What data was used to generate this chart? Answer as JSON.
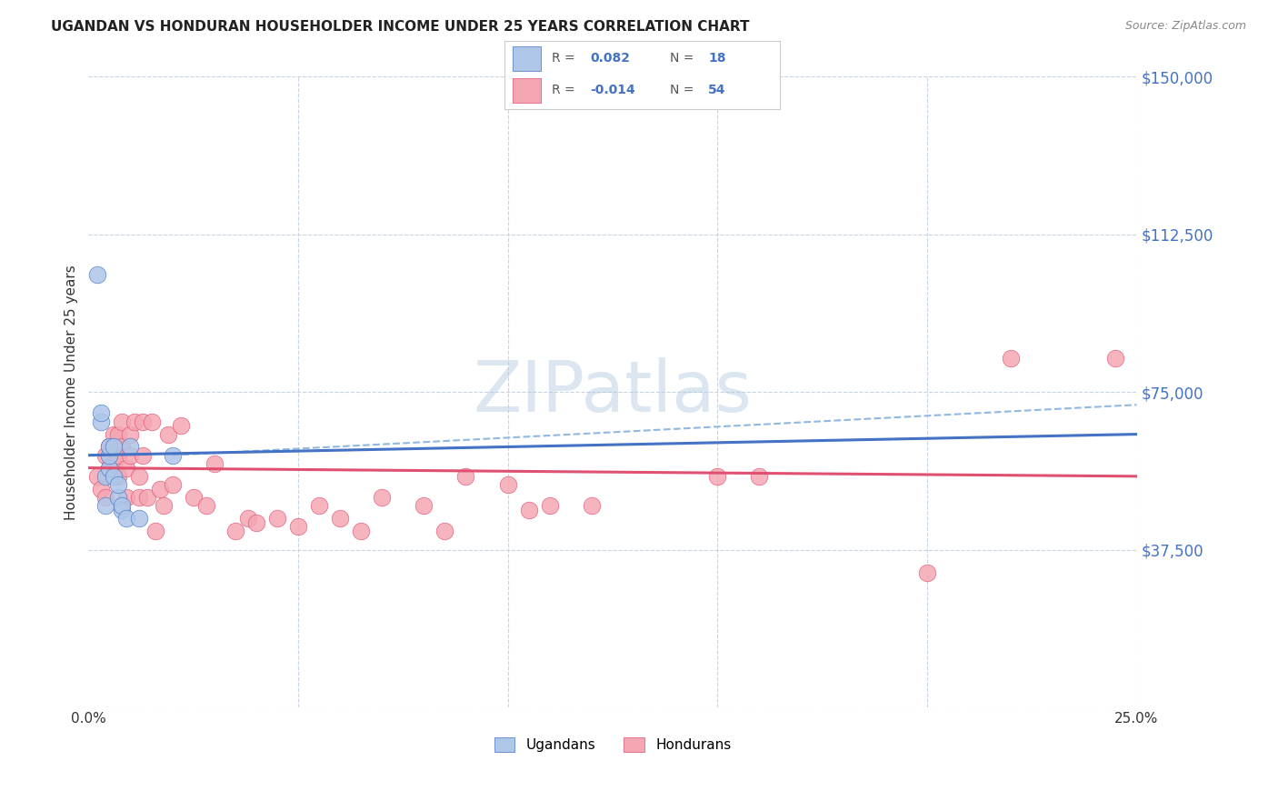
{
  "title": "UGANDAN VS HONDURAN HOUSEHOLDER INCOME UNDER 25 YEARS CORRELATION CHART",
  "source": "Source: ZipAtlas.com",
  "ylabel": "Householder Income Under 25 years",
  "xlim": [
    0.0,
    0.25
  ],
  "ylim": [
    0,
    150000
  ],
  "yticks": [
    0,
    37500,
    75000,
    112500,
    150000
  ],
  "ytick_labels": [
    "",
    "$37,500",
    "$75,000",
    "$112,500",
    "$150,000"
  ],
  "xticks": [
    0.0,
    0.05,
    0.1,
    0.15,
    0.2,
    0.25
  ],
  "xtick_labels": [
    "0.0%",
    "",
    "",
    "",
    "",
    "25.0%"
  ],
  "ugandan_R": 0.082,
  "ugandan_N": 18,
  "honduran_R": -0.014,
  "honduran_N": 54,
  "ugandan_color": "#aec6e8",
  "honduran_color": "#f4a7b3",
  "ugandan_line_color": "#4472c4",
  "honduran_line_color": "#e05070",
  "dashed_line_color": "#90b8e0",
  "background_color": "#ffffff",
  "grid_color": "#c8d4e0",
  "watermark": "ZIPatlas",
  "ugandan_x": [
    0.002,
    0.003,
    0.003,
    0.004,
    0.004,
    0.005,
    0.005,
    0.005,
    0.006,
    0.006,
    0.007,
    0.007,
    0.008,
    0.008,
    0.009,
    0.01,
    0.012,
    0.02
  ],
  "ugandan_y": [
    103000,
    68000,
    70000,
    55000,
    48000,
    57000,
    60000,
    62000,
    55000,
    62000,
    50000,
    53000,
    47000,
    48000,
    45000,
    62000,
    45000,
    60000
  ],
  "honduran_x": [
    0.002,
    0.003,
    0.004,
    0.004,
    0.005,
    0.005,
    0.006,
    0.006,
    0.007,
    0.007,
    0.007,
    0.008,
    0.008,
    0.009,
    0.009,
    0.01,
    0.01,
    0.011,
    0.012,
    0.012,
    0.013,
    0.013,
    0.014,
    0.015,
    0.016,
    0.017,
    0.018,
    0.019,
    0.02,
    0.022,
    0.025,
    0.028,
    0.03,
    0.035,
    0.038,
    0.04,
    0.045,
    0.05,
    0.055,
    0.06,
    0.065,
    0.07,
    0.08,
    0.085,
    0.09,
    0.1,
    0.105,
    0.11,
    0.12,
    0.15,
    0.16,
    0.2,
    0.22,
    0.245
  ],
  "honduran_y": [
    55000,
    52000,
    60000,
    50000,
    62000,
    57000,
    65000,
    58000,
    65000,
    60000,
    55000,
    68000,
    62000,
    57000,
    50000,
    65000,
    60000,
    68000,
    55000,
    50000,
    68000,
    60000,
    50000,
    68000,
    42000,
    52000,
    48000,
    65000,
    53000,
    67000,
    50000,
    48000,
    58000,
    42000,
    45000,
    44000,
    45000,
    43000,
    48000,
    45000,
    42000,
    50000,
    48000,
    42000,
    55000,
    53000,
    47000,
    48000,
    48000,
    55000,
    55000,
    32000,
    83000,
    83000
  ],
  "dashed_line_y0": 60000,
  "dashed_line_y1": 72000,
  "ugandan_trend_y0": 60000,
  "ugandan_trend_y1": 65000,
  "honduran_trend_y0": 57000,
  "honduran_trend_y1": 55000
}
